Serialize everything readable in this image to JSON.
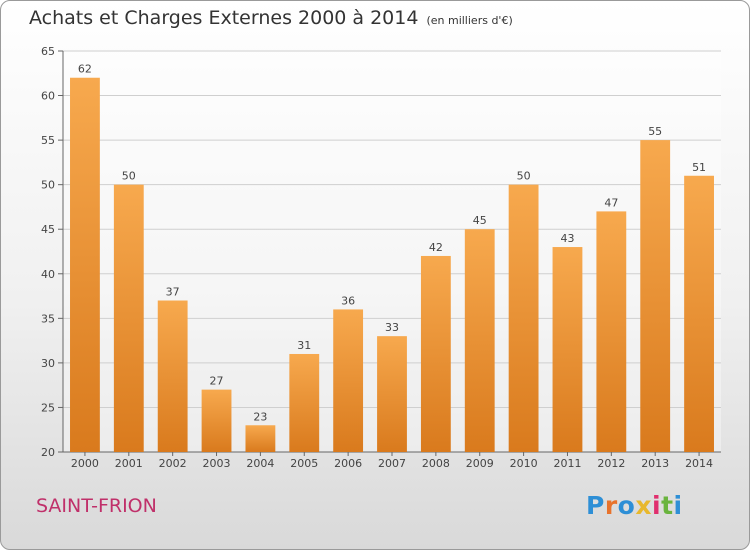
{
  "title": "Achats et Charges Externes 2000 à 2014",
  "unit": "(en milliers d'€)",
  "place": "SAINT-FRION",
  "logo": {
    "text": "Proxiti",
    "colors": [
      "#2e8fd6",
      "#e8732c",
      "#2e8fd6",
      "#e8b82c",
      "#e02f6e",
      "#6ab43e",
      "#2e8fd6"
    ]
  },
  "colors": {
    "bar_light": "#f7a94e",
    "bar_dark": "#d97a1d",
    "grid": "#cfcfcf",
    "axis": "#666666"
  },
  "chart_data": {
    "type": "bar",
    "title": "Achats et Charges Externes 2000 à 2014",
    "categories": [
      "2000",
      "2001",
      "2002",
      "2003",
      "2004",
      "2005",
      "2006",
      "2007",
      "2008",
      "2009",
      "2010",
      "2011",
      "2012",
      "2013",
      "2014"
    ],
    "values": [
      62,
      50,
      37,
      27,
      23,
      31,
      36,
      33,
      42,
      45,
      50,
      43,
      47,
      55,
      51
    ],
    "ylim": [
      20,
      65
    ],
    "yticks": [
      20,
      25,
      30,
      35,
      40,
      45,
      50,
      55,
      60,
      65
    ],
    "grid": true,
    "legend": "none"
  }
}
